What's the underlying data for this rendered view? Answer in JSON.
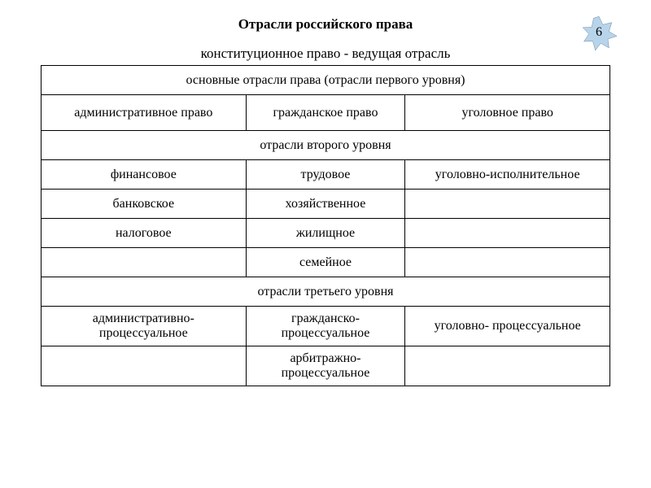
{
  "colors": {
    "background": "#ffffff",
    "text": "#000000",
    "border": "#000000",
    "badge_fill": "#b8d4ea",
    "badge_stroke": "#5b7a9a"
  },
  "title": "Отрасли российского права",
  "subtitle": "конституционное право - ведущая отрасль",
  "badge_number": "6",
  "table": {
    "rows": [
      {
        "cells": [
          {
            "text": "основные отрасли права (отрасли первого уровня)",
            "colspan": 3
          }
        ]
      },
      {
        "cells": [
          {
            "text": "административное право"
          },
          {
            "text": "гражданское право"
          },
          {
            "text": "уголовное право"
          }
        ],
        "tall": true
      },
      {
        "cells": [
          {
            "text": "отрасли второго уровня",
            "colspan": 3
          }
        ]
      },
      {
        "cells": [
          {
            "text": "финансовое"
          },
          {
            "text": "трудовое"
          },
          {
            "text": "уголовно-исполнительное"
          }
        ]
      },
      {
        "cells": [
          {
            "text": "банковское"
          },
          {
            "text": "хозяйственное"
          },
          {
            "text": ""
          }
        ]
      },
      {
        "cells": [
          {
            "text": "налоговое"
          },
          {
            "text": "жилищное"
          },
          {
            "text": ""
          }
        ]
      },
      {
        "cells": [
          {
            "text": ""
          },
          {
            "text": "семейное"
          },
          {
            "text": ""
          }
        ]
      },
      {
        "cells": [
          {
            "text": "отрасли третьего уровня",
            "colspan": 3
          }
        ]
      },
      {
        "cells": [
          {
            "text": "административно-процессуальное"
          },
          {
            "text": "гражданско-процессуальное"
          },
          {
            "text": "уголовно- процессуальное"
          }
        ],
        "tall": true
      },
      {
        "cells": [
          {
            "text": ""
          },
          {
            "text": "арбитражно-процессуальное"
          },
          {
            "text": ""
          }
        ],
        "tall": true
      }
    ]
  }
}
